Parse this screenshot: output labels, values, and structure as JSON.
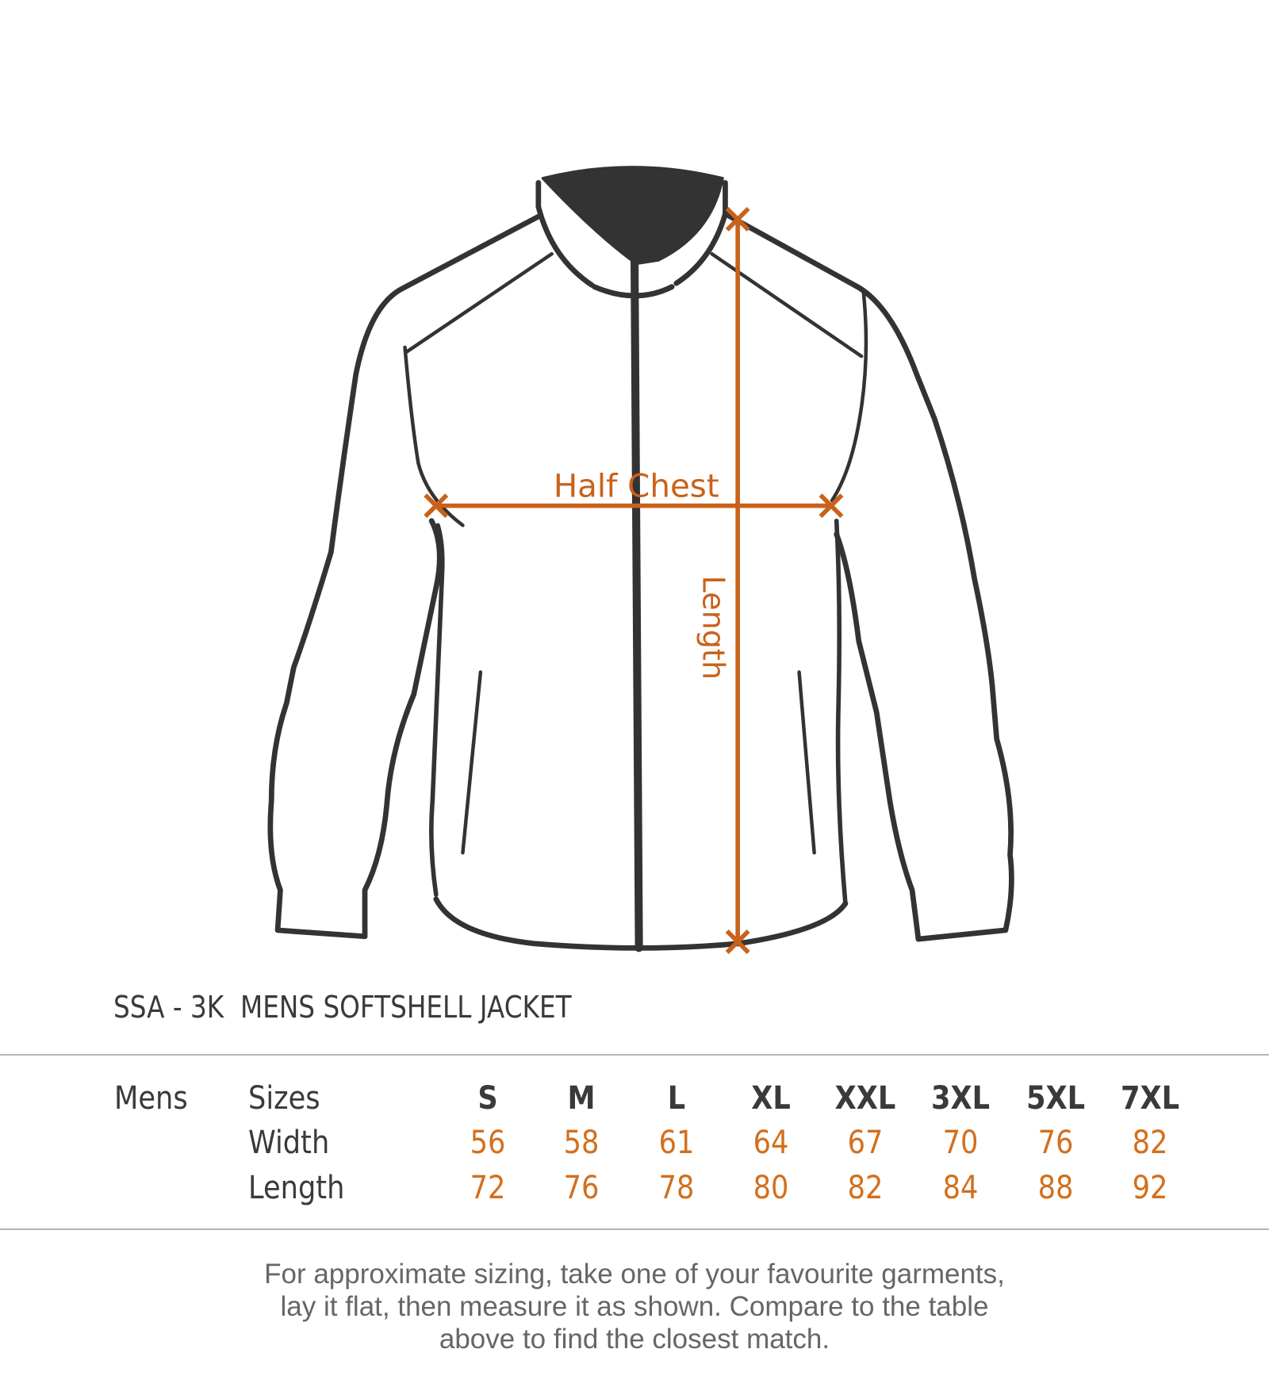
{
  "diagram": {
    "half_chest_label": "Half Chest",
    "length_label": "Length",
    "outline_color": "#333333",
    "measure_color": "#c8621a"
  },
  "title": "SSA - 3K  MENS SOFTSHELL JACKET",
  "table": {
    "group_label": "Mens",
    "row_labels": [
      "Sizes",
      "Width",
      "Length"
    ],
    "sizes": [
      "S",
      "M",
      "L",
      "XL",
      "XXL",
      "3XL",
      "5XL",
      "7XL"
    ],
    "width": [
      "56",
      "58",
      "61",
      "64",
      "67",
      "70",
      "76",
      "82"
    ],
    "length": [
      "72",
      "76",
      "78",
      "80",
      "82",
      "84",
      "88",
      "92"
    ],
    "value_color": "#d36f1c"
  },
  "footer": {
    "lines": [
      "For approximate sizing, take one of your favourite garments,",
      "lay it flat, then measure it as shown. Compare to the table",
      "above to find the closest match."
    ]
  }
}
